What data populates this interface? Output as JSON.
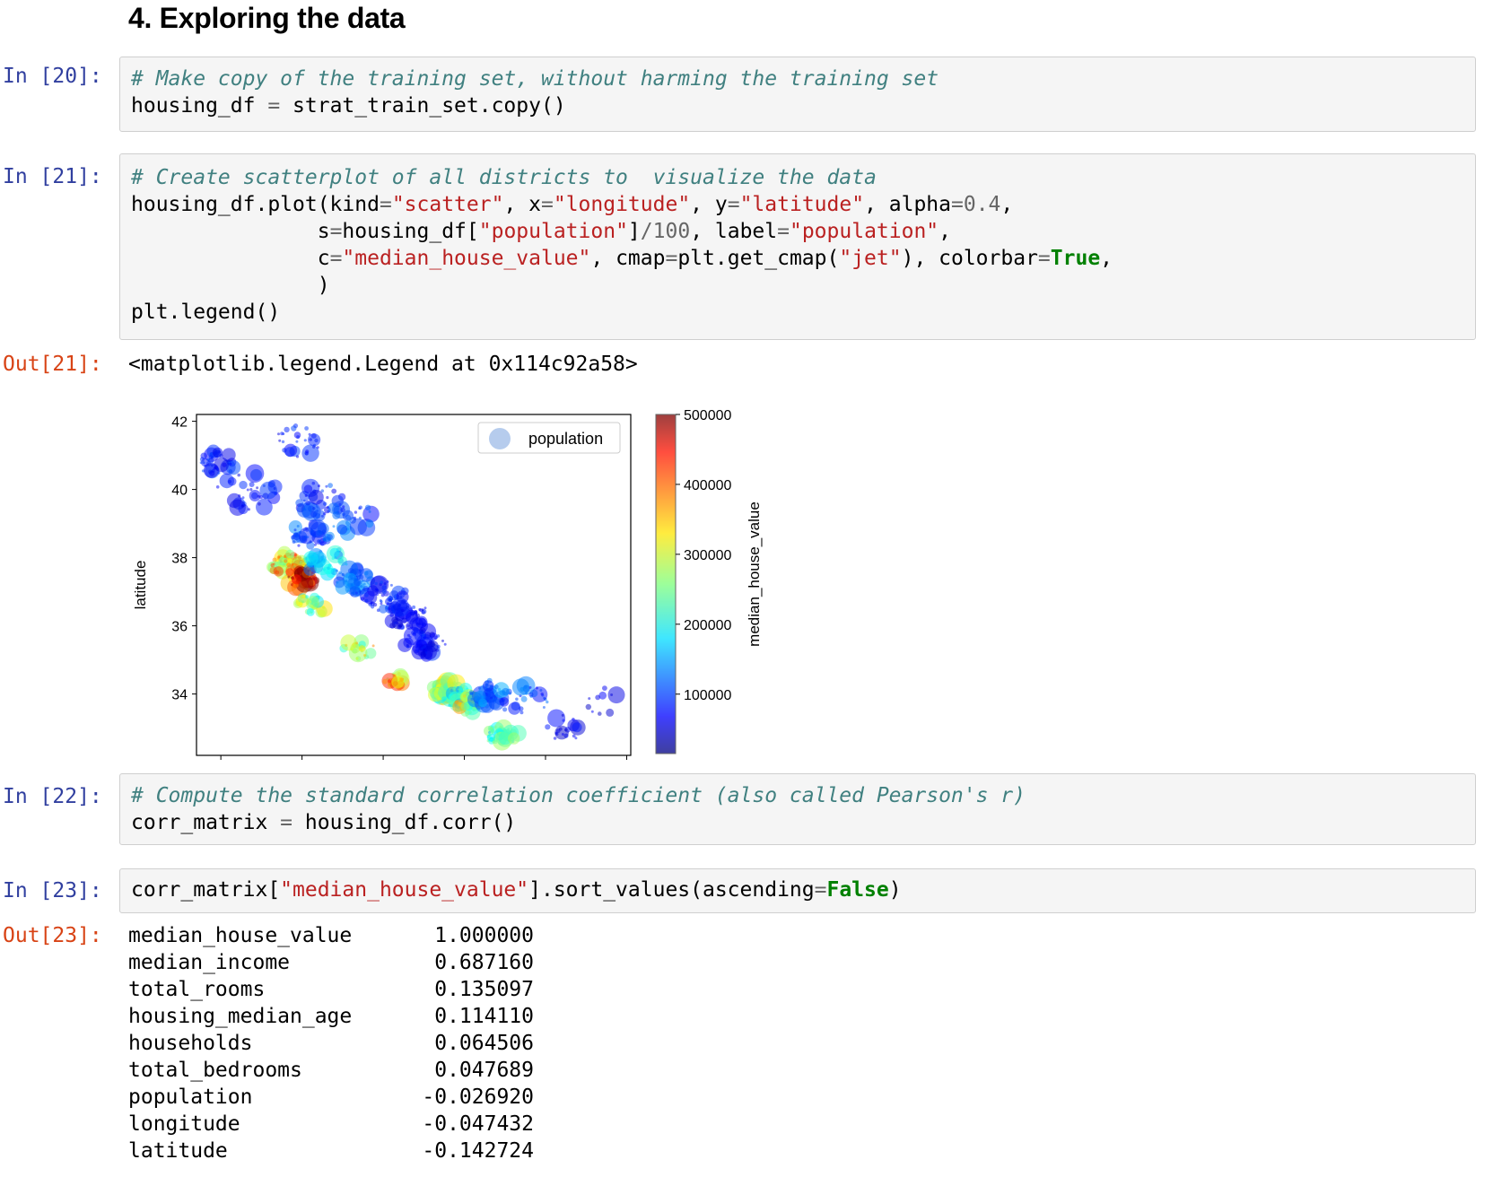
{
  "heading": "4. Exploring the data",
  "cells": [
    {
      "prompt": "In [20]:",
      "lines": [
        [
          {
            "t": "# Make copy of the training set, without harming the training set",
            "c": "cm"
          }
        ],
        [
          {
            "t": "housing_df ",
            "c": ""
          },
          {
            "t": "=",
            "c": "op"
          },
          {
            "t": " strat_train_set.copy()",
            "c": ""
          }
        ]
      ]
    },
    {
      "prompt": "In [21]:",
      "lines": [
        [
          {
            "t": "# Create scatterplot of all districts to  visualize the data",
            "c": "cm"
          }
        ],
        [
          {
            "t": "housing_df.plot(kind",
            "c": ""
          },
          {
            "t": "=",
            "c": "op"
          },
          {
            "t": "\"scatter\"",
            "c": "st"
          },
          {
            "t": ", x",
            "c": ""
          },
          {
            "t": "=",
            "c": "op"
          },
          {
            "t": "\"longitude\"",
            "c": "st"
          },
          {
            "t": ", y",
            "c": ""
          },
          {
            "t": "=",
            "c": "op"
          },
          {
            "t": "\"latitude\"",
            "c": "st"
          },
          {
            "t": ", alpha",
            "c": ""
          },
          {
            "t": "=",
            "c": "op"
          },
          {
            "t": "0.4",
            "c": "nu"
          },
          {
            "t": ",",
            "c": ""
          }
        ],
        [
          {
            "t": "               s",
            "c": ""
          },
          {
            "t": "=",
            "c": "op"
          },
          {
            "t": "housing_df[",
            "c": ""
          },
          {
            "t": "\"population\"",
            "c": "st"
          },
          {
            "t": "]",
            "c": ""
          },
          {
            "t": "/",
            "c": "op"
          },
          {
            "t": "100",
            "c": "nu"
          },
          {
            "t": ", label",
            "c": ""
          },
          {
            "t": "=",
            "c": "op"
          },
          {
            "t": "\"population\"",
            "c": "st"
          },
          {
            "t": ",",
            "c": ""
          }
        ],
        [
          {
            "t": "               c",
            "c": ""
          },
          {
            "t": "=",
            "c": "op"
          },
          {
            "t": "\"median_house_value\"",
            "c": "st"
          },
          {
            "t": ", cmap",
            "c": ""
          },
          {
            "t": "=",
            "c": "op"
          },
          {
            "t": "plt.get_cmap(",
            "c": ""
          },
          {
            "t": "\"jet\"",
            "c": "st"
          },
          {
            "t": "), colorbar",
            "c": ""
          },
          {
            "t": "=",
            "c": "op"
          },
          {
            "t": "True",
            "c": "kw"
          },
          {
            "t": ",",
            "c": ""
          }
        ],
        [
          {
            "t": "               )",
            "c": ""
          }
        ],
        [
          {
            "t": "plt.legend()",
            "c": ""
          }
        ]
      ]
    },
    {
      "prompt": "In [22]:",
      "lines": [
        [
          {
            "t": "# Compute the standard correlation coefficient (also called Pearson's r)",
            "c": "cm"
          }
        ],
        [
          {
            "t": "corr_matrix ",
            "c": ""
          },
          {
            "t": "=",
            "c": "op"
          },
          {
            "t": " housing_df.corr()",
            "c": ""
          }
        ]
      ]
    },
    {
      "prompt": "In [23]:",
      "lines": [
        [
          {
            "t": "corr_matrix[",
            "c": ""
          },
          {
            "t": "\"median_house_value\"",
            "c": "st"
          },
          {
            "t": "].sort_values(ascending",
            "c": ""
          },
          {
            "t": "=",
            "c": "op"
          },
          {
            "t": "False",
            "c": "kw"
          },
          {
            "t": ")",
            "c": ""
          }
        ]
      ]
    }
  ],
  "outputs": {
    "out21_prompt": "Out[21]:",
    "out21_text": "<matplotlib.legend.Legend at 0x114c92a58>",
    "out23_prompt": "Out[23]:"
  },
  "chart_data": {
    "type": "scatter",
    "xlabel": "",
    "ylabel": "latitude",
    "ylim": [
      32.2,
      42.2
    ],
    "xlim": [
      -124.6,
      -113.9
    ],
    "yticks": [
      42,
      40,
      38,
      36,
      34
    ],
    "xticks": [
      -124,
      -122,
      -120,
      -118,
      -116,
      -114
    ],
    "legend": {
      "label": "population",
      "placement": "top-right"
    },
    "colorbar": {
      "label": "median_house_value",
      "ticks": [
        "500000",
        "400000",
        "300000",
        "200000",
        "100000"
      ],
      "range": [
        15000,
        500001
      ],
      "cmap": "jet"
    },
    "clusters": [
      {
        "x": -124.1,
        "y": 40.8,
        "value": 90000,
        "n": 40,
        "spread": 0.35
      },
      {
        "x": -123.3,
        "y": 40.0,
        "value": 80000,
        "n": 35,
        "spread": 0.6
      },
      {
        "x": -122.2,
        "y": 41.4,
        "value": 85000,
        "n": 30,
        "spread": 0.5
      },
      {
        "x": -121.5,
        "y": 39.7,
        "value": 95000,
        "n": 40,
        "spread": 0.5
      },
      {
        "x": -120.8,
        "y": 39.2,
        "value": 110000,
        "n": 25,
        "spread": 0.5
      },
      {
        "x": -121.8,
        "y": 38.7,
        "value": 110000,
        "n": 45,
        "spread": 0.4
      },
      {
        "x": -122.3,
        "y": 37.8,
        "value": 330000,
        "n": 60,
        "spread": 0.35
      },
      {
        "x": -122.0,
        "y": 37.4,
        "value": 450000,
        "n": 55,
        "spread": 0.3
      },
      {
        "x": -121.4,
        "y": 37.9,
        "value": 170000,
        "n": 40,
        "spread": 0.4
      },
      {
        "x": -120.7,
        "y": 37.3,
        "value": 120000,
        "n": 45,
        "spread": 0.4
      },
      {
        "x": -120.0,
        "y": 36.9,
        "value": 90000,
        "n": 50,
        "spread": 0.45
      },
      {
        "x": -119.4,
        "y": 36.3,
        "value": 75000,
        "n": 55,
        "spread": 0.4
      },
      {
        "x": -119.0,
        "y": 35.5,
        "value": 80000,
        "n": 50,
        "spread": 0.4
      },
      {
        "x": -121.8,
        "y": 36.6,
        "value": 260000,
        "n": 30,
        "spread": 0.3
      },
      {
        "x": -120.6,
        "y": 35.3,
        "value": 300000,
        "n": 20,
        "spread": 0.3
      },
      {
        "x": -119.7,
        "y": 34.4,
        "value": 380000,
        "n": 20,
        "spread": 0.2
      },
      {
        "x": -118.4,
        "y": 34.1,
        "value": 270000,
        "n": 70,
        "spread": 0.3
      },
      {
        "x": -118.1,
        "y": 33.9,
        "value": 200000,
        "n": 50,
        "spread": 0.3
      },
      {
        "x": -117.9,
        "y": 33.7,
        "value": 280000,
        "n": 40,
        "spread": 0.25
      },
      {
        "x": -117.4,
        "y": 34.0,
        "value": 130000,
        "n": 45,
        "spread": 0.4
      },
      {
        "x": -117.1,
        "y": 32.8,
        "value": 220000,
        "n": 45,
        "spread": 0.3
      },
      {
        "x": -116.5,
        "y": 33.8,
        "value": 110000,
        "n": 30,
        "spread": 0.45
      },
      {
        "x": -115.5,
        "y": 33.0,
        "value": 70000,
        "n": 20,
        "spread": 0.4
      },
      {
        "x": -114.6,
        "y": 33.8,
        "value": 60000,
        "n": 10,
        "spread": 0.4
      }
    ]
  },
  "series_output": [
    {
      "name": "median_house_value",
      "value": "1.000000"
    },
    {
      "name": "median_income",
      "value": "0.687160"
    },
    {
      "name": "total_rooms",
      "value": "0.135097"
    },
    {
      "name": "housing_median_age",
      "value": "0.114110"
    },
    {
      "name": "households",
      "value": "0.064506"
    },
    {
      "name": "total_bedrooms",
      "value": "0.047689"
    },
    {
      "name": "population",
      "value": "-0.026920"
    },
    {
      "name": "longitude",
      "value": "-0.047432"
    },
    {
      "name": "latitude",
      "value": "-0.142724"
    }
  ]
}
